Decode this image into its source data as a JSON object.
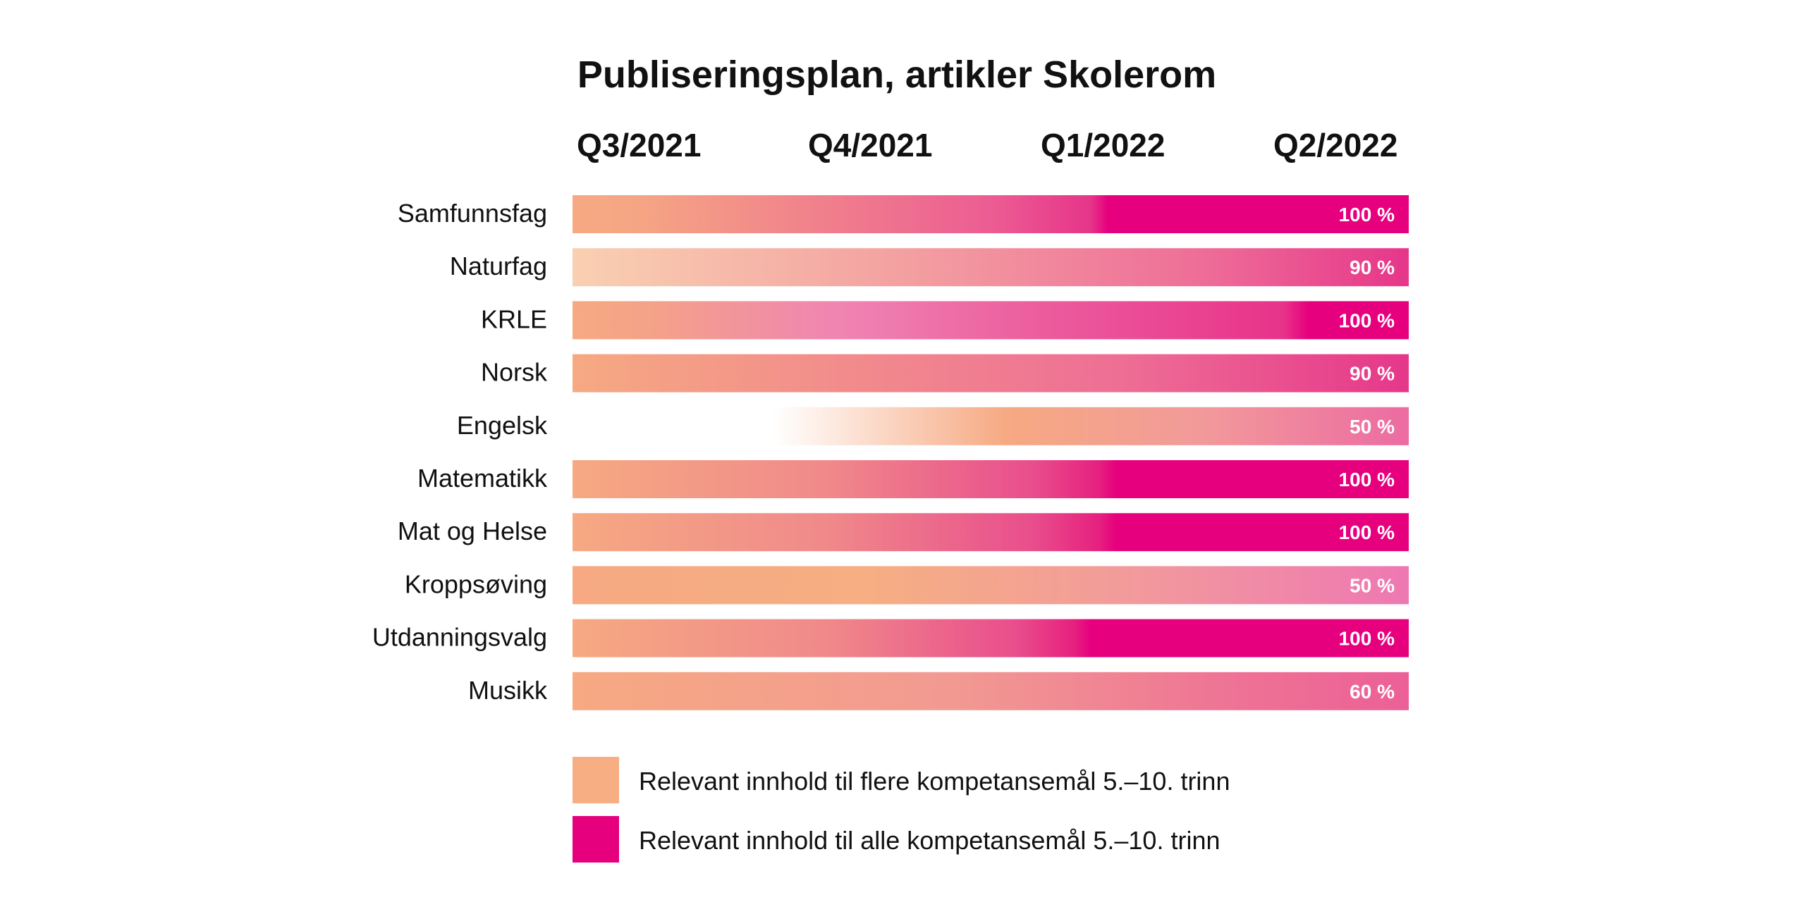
{
  "chart_data": {
    "type": "bar",
    "orientation": "horizontal",
    "title": "Publiseringsplan, artikler Skolerom",
    "quarters": [
      "Q3/2021",
      "Q4/2021",
      "Q1/2022",
      "Q2/2022"
    ],
    "categories": [
      "Samfunnsfag",
      "Naturfag",
      "KRLE",
      "Norsk",
      "Engelsk",
      "Matematikk",
      "Mat og Helse",
      "Kroppsøving",
      "Utdanningsvalg",
      "Musikk"
    ],
    "values": [
      100,
      90,
      100,
      90,
      50,
      100,
      100,
      50,
      100,
      60
    ],
    "value_labels": [
      "100 %",
      "90 %",
      "100 %",
      "90 %",
      "50 %",
      "100 %",
      "100 %",
      "50 %",
      "100 %",
      "60 %"
    ],
    "bars": [
      {
        "stops": [
          {
            "at": 0,
            "color": "#F6A982"
          },
          {
            "at": 0.08,
            "color": "#F5A584"
          },
          {
            "at": 0.5,
            "color": "#EC5D93"
          },
          {
            "at": 0.62,
            "color": "#E63589"
          },
          {
            "at": 0.64,
            "color": "#E6007E"
          },
          {
            "at": 1,
            "color": "#E6007E"
          }
        ]
      },
      {
        "stops": [
          {
            "at": 0,
            "color": "#F9D0B2"
          },
          {
            "at": 0.35,
            "color": "#F4A6A2"
          },
          {
            "at": 0.75,
            "color": "#EE6E98"
          },
          {
            "at": 1,
            "color": "#E6368A"
          }
        ]
      },
      {
        "stops": [
          {
            "at": 0,
            "color": "#F6A982"
          },
          {
            "at": 0.1,
            "color": "#F4A189"
          },
          {
            "at": 0.32,
            "color": "#F084B3"
          },
          {
            "at": 0.55,
            "color": "#EC5E9E"
          },
          {
            "at": 0.85,
            "color": "#E8338A"
          },
          {
            "at": 0.88,
            "color": "#E6007E"
          },
          {
            "at": 1,
            "color": "#E6007E"
          }
        ]
      },
      {
        "stops": [
          {
            "at": 0,
            "color": "#F6A982"
          },
          {
            "at": 0.3,
            "color": "#F28E8B"
          },
          {
            "at": 0.65,
            "color": "#EE6F95"
          },
          {
            "at": 1,
            "color": "#E6378A"
          }
        ]
      },
      {
        "stops": [
          {
            "at": 0,
            "color": "#FFFFFF"
          },
          {
            "at": 0.24,
            "color": "#FFFFFF"
          },
          {
            "at": 0.52,
            "color": "#F6A982"
          },
          {
            "at": 0.75,
            "color": "#F29A9A"
          },
          {
            "at": 1,
            "color": "#EC6BA2"
          }
        ]
      },
      {
        "stops": [
          {
            "at": 0,
            "color": "#F6A982"
          },
          {
            "at": 0.3,
            "color": "#F08A8A"
          },
          {
            "at": 0.55,
            "color": "#E94E8C"
          },
          {
            "at": 0.63,
            "color": "#E6207F"
          },
          {
            "at": 0.65,
            "color": "#E6007E"
          },
          {
            "at": 1,
            "color": "#E6007E"
          }
        ]
      },
      {
        "stops": [
          {
            "at": 0,
            "color": "#F6A982"
          },
          {
            "at": 0.3,
            "color": "#F08A8A"
          },
          {
            "at": 0.55,
            "color": "#E94E8C"
          },
          {
            "at": 0.63,
            "color": "#E6207F"
          },
          {
            "at": 0.65,
            "color": "#E6007E"
          },
          {
            "at": 1,
            "color": "#E6007E"
          }
        ]
      },
      {
        "stops": [
          {
            "at": 0,
            "color": "#F6A982"
          },
          {
            "at": 0.35,
            "color": "#F6AE82"
          },
          {
            "at": 0.65,
            "color": "#F29C9A"
          },
          {
            "at": 1,
            "color": "#EE78B2"
          }
        ]
      },
      {
        "stops": [
          {
            "at": 0,
            "color": "#F6A982"
          },
          {
            "at": 0.3,
            "color": "#F08A8A"
          },
          {
            "at": 0.53,
            "color": "#E94E8C"
          },
          {
            "at": 0.6,
            "color": "#E6207F"
          },
          {
            "at": 0.62,
            "color": "#E6007E"
          },
          {
            "at": 1,
            "color": "#E6007E"
          }
        ]
      },
      {
        "stops": [
          {
            "at": 0,
            "color": "#F6A982"
          },
          {
            "at": 0.45,
            "color": "#F29A92"
          },
          {
            "at": 0.8,
            "color": "#EE7295"
          },
          {
            "at": 1,
            "color": "#EC6097"
          }
        ]
      }
    ],
    "legend": [
      {
        "label": "Relevant innhold til flere kompetansemål 5.–10. trinn",
        "color": "#F6AE82"
      },
      {
        "label": "Relevant innhold til alle kompetansemål 5.–10. trinn",
        "color": "#E6007E"
      }
    ],
    "legend_position": "bottom-left",
    "grid": false
  }
}
